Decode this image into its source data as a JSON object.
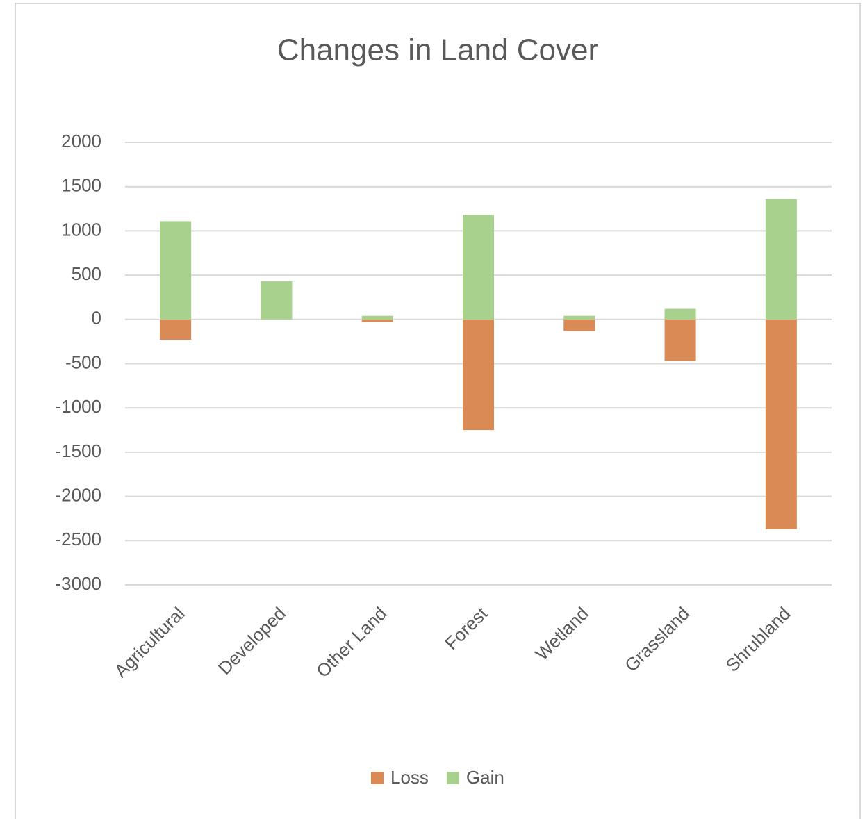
{
  "chart_data": {
    "type": "bar",
    "stacked": true,
    "title": "Changes in Land Cover",
    "categories": [
      "Agricultural",
      "Developed",
      "Other Land",
      "Forest",
      "Wetland",
      "Grassland",
      "Shrubland"
    ],
    "series": [
      {
        "name": "Loss",
        "color": "#d98a55",
        "values": [
          -230,
          0,
          -30,
          -1250,
          -130,
          -470,
          -2370
        ]
      },
      {
        "name": "Gain",
        "color": "#a9d18e",
        "values": [
          1110,
          430,
          40,
          1180,
          40,
          120,
          1360
        ]
      }
    ],
    "ylim": [
      -3000,
      2000
    ],
    "yticks": [
      -3000,
      -2500,
      -2000,
      -1500,
      -1000,
      -500,
      0,
      500,
      1000,
      1500,
      2000
    ],
    "grid": true,
    "legend": "bottom"
  }
}
